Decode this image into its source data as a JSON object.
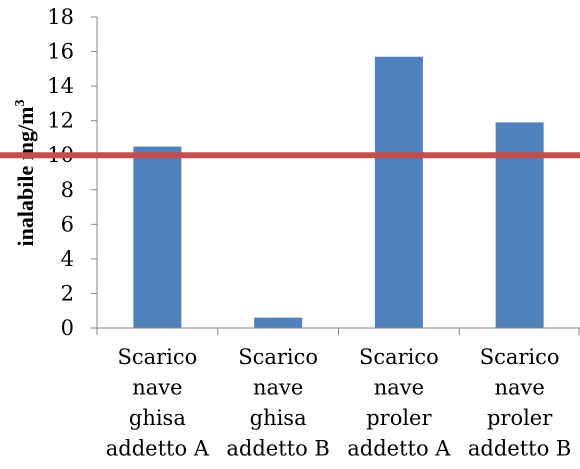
{
  "chart_data": {
    "type": "bar",
    "title": "",
    "xlabel": "",
    "ylabel": "inalabile mg/m",
    "ylabel_sup": "3",
    "categories": [
      [
        "Scarico",
        "nave",
        "ghisa",
        "addetto A"
      ],
      [
        "Scarico",
        "nave",
        "ghisa",
        "addetto B"
      ],
      [
        "Scarico",
        "nave",
        "proler",
        "addetto A"
      ],
      [
        "Scarico",
        "nave",
        "proler",
        "addetto B"
      ]
    ],
    "values": [
      10.5,
      0.6,
      15.7,
      11.9
    ],
    "ylim": [
      0,
      18
    ],
    "yticks": [
      "0",
      "2",
      "4",
      "6",
      "8",
      "10",
      "12",
      "14",
      "16",
      "18"
    ],
    "reference_line": {
      "value": 10,
      "color": "#C0504D"
    },
    "colors": {
      "bar": "#4F81BD",
      "axis": "#868686"
    },
    "grid": false,
    "legend": "none"
  }
}
